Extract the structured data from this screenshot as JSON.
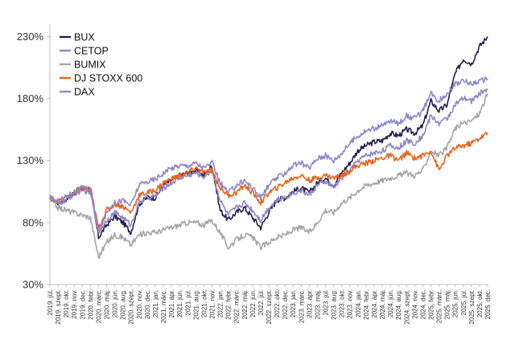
{
  "chart_data": {
    "type": "line",
    "title": "",
    "xlabel": "",
    "ylabel": "",
    "ylim": [
      30,
      240
    ],
    "y_ticks": [
      30,
      80,
      130,
      180,
      230
    ],
    "y_tick_labels": [
      "30%",
      "80%",
      "130%",
      "180%",
      "230%"
    ],
    "grid": false,
    "legend_position": "top-left",
    "x_tick_labels": [
      "2019. júl.",
      "2019. szept.",
      "2019. okt.",
      "2019. nov.",
      "2019. dec.",
      "2020. febr.",
      "2020. márc.",
      "2020. máj.",
      "2020. jún.",
      "2020. aug.",
      "2020. szept.",
      "2020. nov.",
      "2020. dec.",
      "2021. jan.",
      "2021. márc.",
      "2021. ápr.",
      "2021. jún.",
      "2021. júl.",
      "2021. aug.",
      "2021. okt.",
      "2021. nov.",
      "2022. jan.",
      "2022. febr.",
      "2022. márc.",
      "2022. máj.",
      "2022. jún.",
      "2022. júl.",
      "2022. szept.",
      "2022. okt.",
      "2022. dec.",
      "2023. jan.",
      "2023. márc.",
      "2023. ápr.",
      "2023. máj.",
      "2023. júl.",
      "2023. aug.",
      "2023. okt.",
      "2023. nov.",
      "2024. jan.",
      "2024. febr.",
      "2024. ápr.",
      "2024. máj.",
      "2024. jún.",
      "2024. aug.",
      "2024. szept.",
      "2024. nov.",
      "2024. dec.",
      "2025. febr.",
      "2025. márc.",
      "2025. máj.",
      "2025. jún.",
      "2025. júl.",
      "2025. szept.",
      "2025. okt.",
      "2025. dec."
    ],
    "x": [
      0,
      1,
      2,
      3,
      4,
      5,
      6,
      7,
      8,
      9,
      10,
      11,
      12,
      13,
      14,
      15,
      16,
      17,
      18,
      19,
      20,
      21,
      22,
      23,
      24,
      25,
      26,
      27,
      28,
      29,
      30,
      31,
      32,
      33,
      34,
      35,
      36,
      37,
      38,
      39,
      40,
      41,
      42,
      43,
      44,
      45,
      46,
      47,
      48,
      49,
      50,
      51,
      52,
      53,
      54
    ],
    "series": [
      {
        "name": "BUX",
        "color": "#23204f",
        "values": [
          100,
          96,
          99,
          104,
          108,
          106,
          68,
          78,
          85,
          80,
          72,
          95,
          100,
          100,
          110,
          114,
          118,
          120,
          122,
          118,
          126,
          90,
          82,
          88,
          92,
          84,
          76,
          88,
          98,
          100,
          105,
          108,
          104,
          112,
          116,
          110,
          120,
          128,
          138,
          142,
          145,
          146,
          152,
          150,
          155,
          152,
          158,
          178,
          170,
          175,
          200,
          212,
          208,
          222,
          230
        ]
      },
      {
        "name": "CETOP",
        "color": "#8f86c7",
        "values": [
          100,
          95,
          98,
          103,
          106,
          104,
          72,
          82,
          88,
          84,
          78,
          96,
          100,
          101,
          108,
          112,
          116,
          118,
          120,
          117,
          122,
          98,
          86,
          92,
          96,
          90,
          82,
          92,
          98,
          100,
          104,
          106,
          102,
          110,
          113,
          108,
          116,
          122,
          130,
          134,
          136,
          138,
          142,
          140,
          146,
          144,
          150,
          166,
          160,
          164,
          175,
          180,
          178,
          184,
          188
        ]
      },
      {
        "name": "BUMIX",
        "color": "#a6a6a6",
        "values": [
          100,
          92,
          90,
          88,
          86,
          84,
          52,
          64,
          70,
          68,
          62,
          70,
          72,
          72,
          74,
          76,
          78,
          80,
          80,
          78,
          82,
          72,
          60,
          66,
          70,
          68,
          60,
          64,
          68,
          70,
          74,
          76,
          72,
          80,
          90,
          88,
          96,
          100,
          106,
          110,
          112,
          114,
          116,
          118,
          120,
          118,
          122,
          138,
          134,
          140,
          156,
          160,
          162,
          168,
          184
        ]
      },
      {
        "name": "DJ STOXX 600",
        "color": "#e8641b",
        "values": [
          100,
          97,
          100,
          104,
          107,
          108,
          75,
          90,
          95,
          93,
          88,
          102,
          104,
          106,
          112,
          115,
          118,
          120,
          124,
          120,
          122,
          108,
          102,
          104,
          110,
          104,
          96,
          104,
          108,
          112,
          116,
          118,
          114,
          116,
          118,
          116,
          118,
          122,
          126,
          128,
          130,
          132,
          134,
          130,
          136,
          132,
          134,
          138,
          122,
          134,
          140,
          142,
          144,
          148,
          152
        ]
      },
      {
        "name": "DAX",
        "color": "#8d89cc",
        "values": [
          100,
          97,
          101,
          105,
          108,
          106,
          72,
          88,
          96,
          98,
          94,
          110,
          113,
          115,
          120,
          124,
          126,
          126,
          128,
          124,
          128,
          112,
          104,
          110,
          114,
          108,
          100,
          110,
          116,
          120,
          126,
          128,
          124,
          132,
          134,
          130,
          136,
          144,
          150,
          154,
          156,
          158,
          162,
          160,
          166,
          164,
          170,
          184,
          178,
          184,
          192,
          194,
          192,
          194,
          196
        ]
      }
    ]
  }
}
